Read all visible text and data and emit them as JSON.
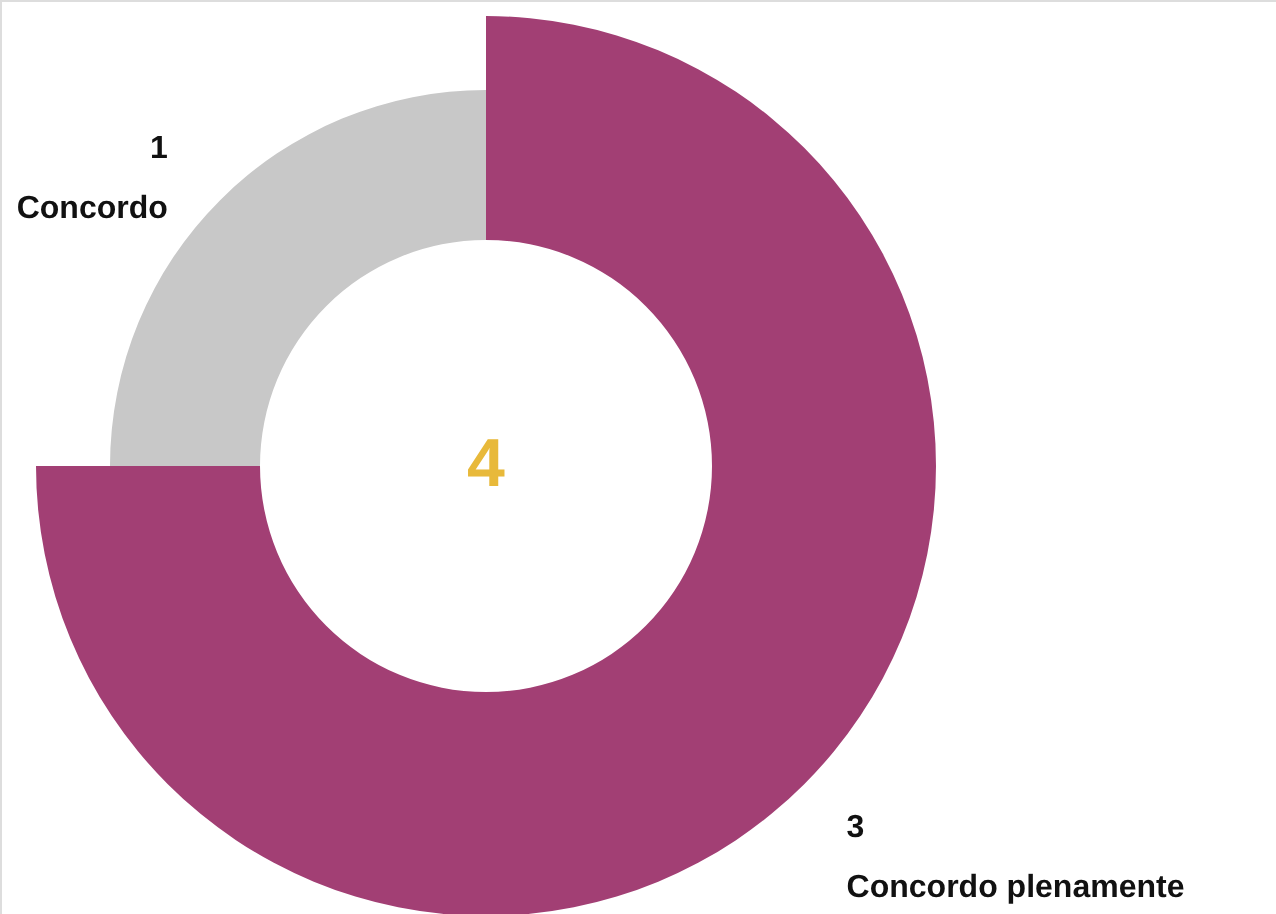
{
  "chart_data": {
    "type": "donut",
    "categories": [
      "Concordo plenamente",
      "Concordo"
    ],
    "values": [
      3,
      1
    ],
    "colors": [
      "#a23f74",
      "#c8c8c8"
    ],
    "data_labels": true,
    "annotations": [
      "4"
    ]
  }
}
